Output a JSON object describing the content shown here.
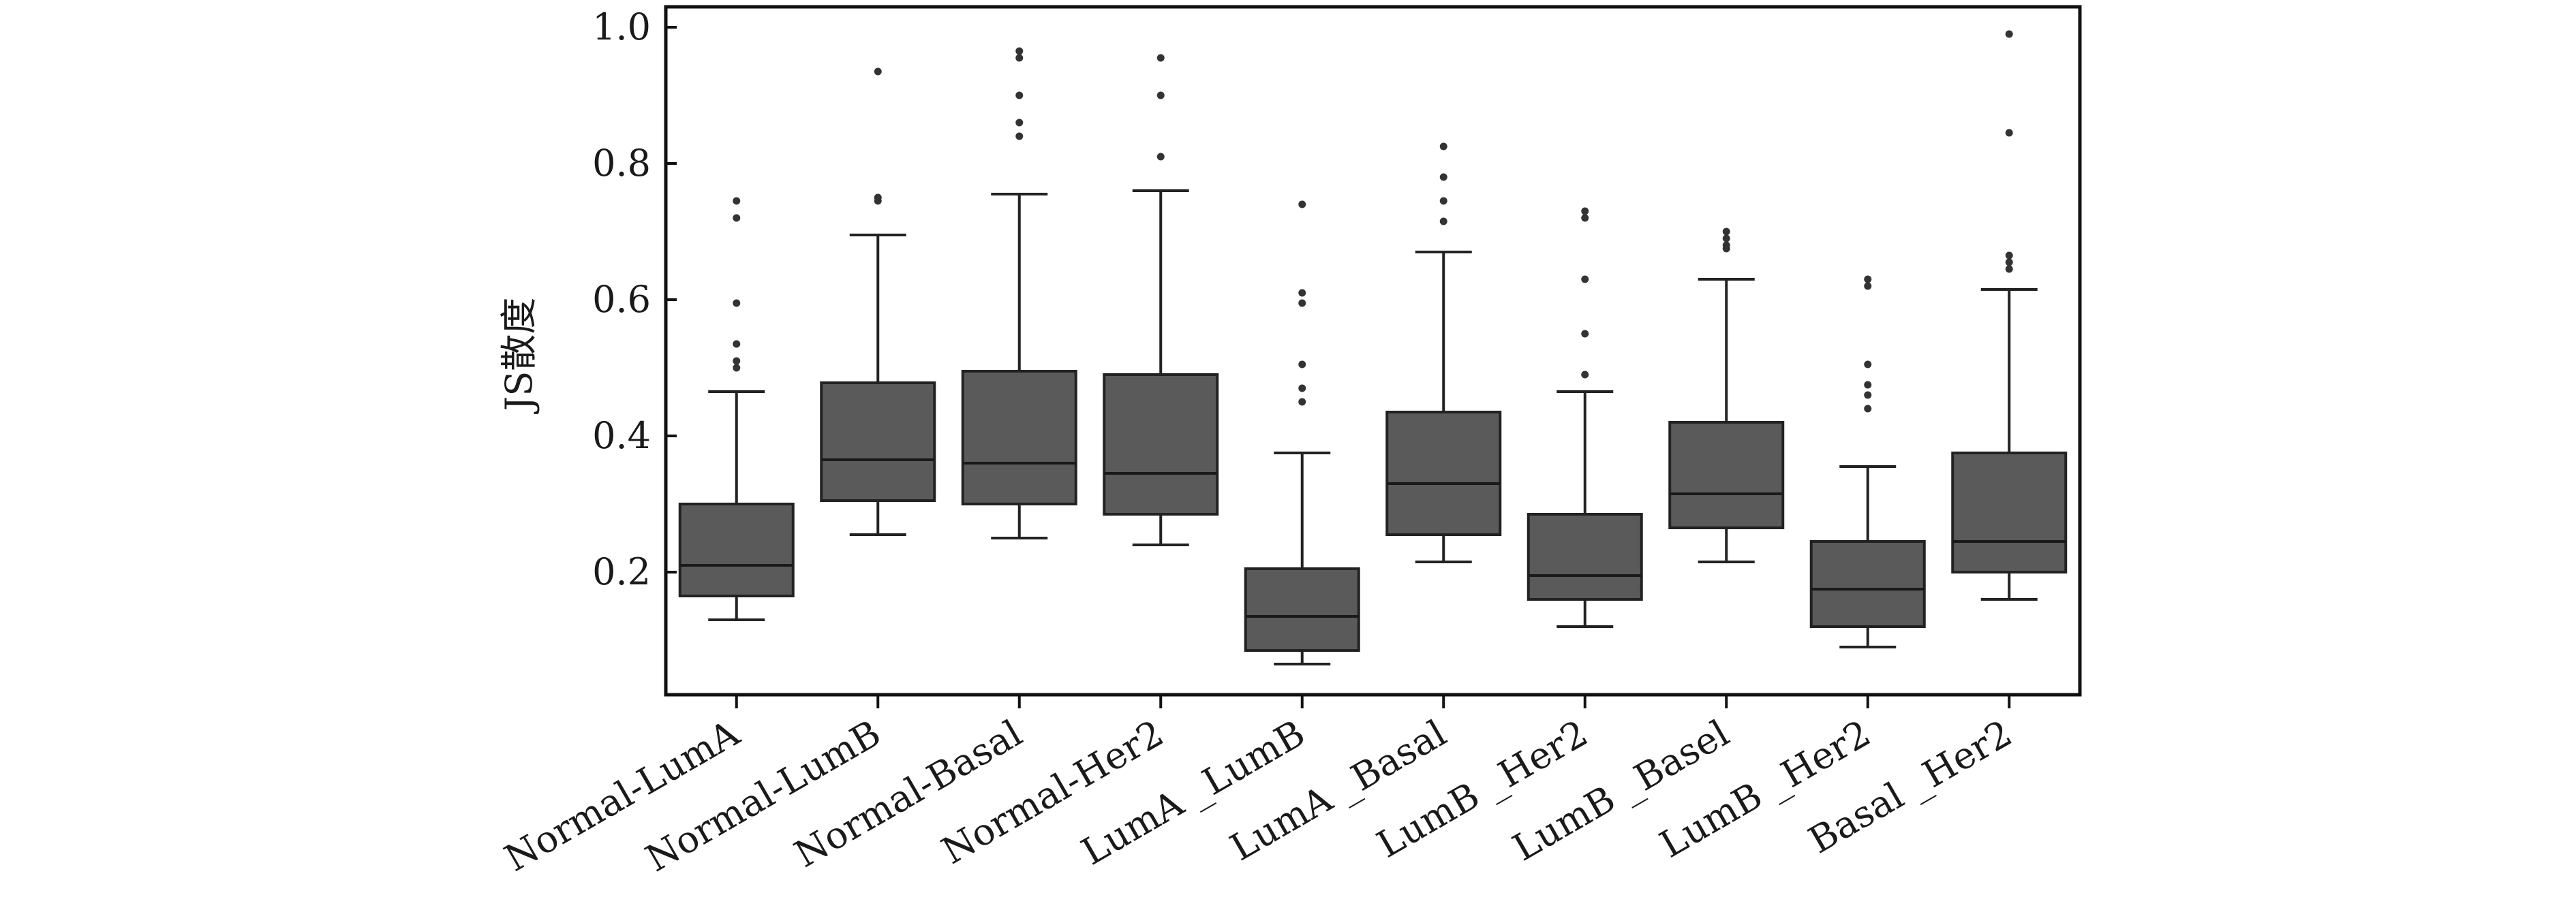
{
  "chart_data": {
    "type": "boxplot",
    "ylabel": "JS散度",
    "xlabel": "",
    "ylim": [
      0.02,
      1.03
    ],
    "yticks": [
      0.2,
      0.4,
      0.6,
      0.8,
      1.0
    ],
    "ytick_labels": [
      "0.2",
      "0.4",
      "0.6",
      "0.8",
      "1.0"
    ],
    "grid": false,
    "box_color": "#5a5a5a",
    "categories": [
      "Normal-LumA",
      "Normal-LumB",
      "Normal-Basal",
      "Normal-Her2",
      "LumA _LumB",
      "LumA _Basal",
      "LumB _Her2",
      "LumB _Basel",
      "LumB _Her2",
      "Basal _Her2"
    ],
    "boxes": [
      {
        "min": 0.13,
        "q1": 0.165,
        "median": 0.21,
        "q3": 0.3,
        "max": 0.465,
        "outliers": [
          0.5,
          0.51,
          0.535,
          0.595,
          0.72,
          0.745
        ]
      },
      {
        "min": 0.255,
        "q1": 0.305,
        "median": 0.365,
        "q3": 0.478,
        "max": 0.695,
        "outliers": [
          0.745,
          0.75,
          0.935
        ]
      },
      {
        "min": 0.25,
        "q1": 0.3,
        "median": 0.36,
        "q3": 0.495,
        "max": 0.755,
        "outliers": [
          0.84,
          0.86,
          0.9,
          0.955,
          0.965
        ]
      },
      {
        "min": 0.24,
        "q1": 0.285,
        "median": 0.345,
        "q3": 0.49,
        "max": 0.76,
        "outliers": [
          0.81,
          0.9,
          0.955
        ]
      },
      {
        "min": 0.065,
        "q1": 0.085,
        "median": 0.135,
        "q3": 0.205,
        "max": 0.375,
        "outliers": [
          0.45,
          0.47,
          0.505,
          0.595,
          0.61,
          0.74
        ]
      },
      {
        "min": 0.215,
        "q1": 0.255,
        "median": 0.33,
        "q3": 0.435,
        "max": 0.67,
        "outliers": [
          0.715,
          0.745,
          0.78,
          0.825
        ]
      },
      {
        "min": 0.12,
        "q1": 0.16,
        "median": 0.195,
        "q3": 0.285,
        "max": 0.465,
        "outliers": [
          0.49,
          0.55,
          0.63,
          0.72,
          0.73
        ]
      },
      {
        "min": 0.215,
        "q1": 0.265,
        "median": 0.315,
        "q3": 0.42,
        "max": 0.63,
        "outliers": [
          0.675,
          0.68,
          0.69,
          0.7
        ]
      },
      {
        "min": 0.09,
        "q1": 0.12,
        "median": 0.175,
        "q3": 0.245,
        "max": 0.355,
        "outliers": [
          0.44,
          0.46,
          0.475,
          0.505,
          0.62,
          0.63
        ]
      },
      {
        "min": 0.16,
        "q1": 0.2,
        "median": 0.245,
        "q3": 0.375,
        "max": 0.615,
        "outliers": [
          0.645,
          0.655,
          0.665,
          0.845,
          0.99
        ]
      }
    ]
  }
}
